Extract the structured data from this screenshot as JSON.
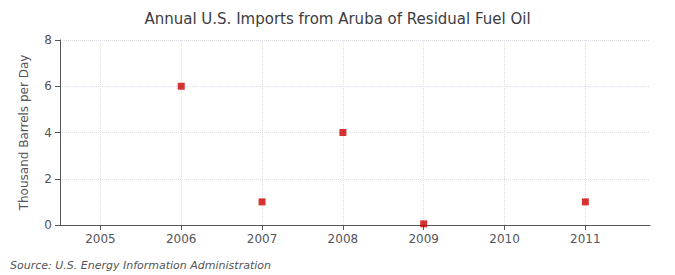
{
  "chart_data": {
    "type": "scatter",
    "title": "Annual U.S. Imports from Aruba of Residual Fuel Oil",
    "ylabel": "Thousand Barrels per Day",
    "annotations": [
      "Source: U.S. Energy Information Administration"
    ],
    "x": [
      2006,
      2007,
      2008,
      2009,
      2011
    ],
    "values": [
      6,
      1,
      4,
      0.05,
      1
    ],
    "color": "#CC0000",
    "marker": "square",
    "xlim": [
      2004.5,
      2011.8
    ],
    "xticks": [
      2005,
      2006,
      2007,
      2008,
      2009,
      2010,
      2011
    ],
    "ylim": [
      0,
      8
    ],
    "yticks": [
      0,
      2,
      4,
      6,
      8
    ],
    "grid": true
  }
}
